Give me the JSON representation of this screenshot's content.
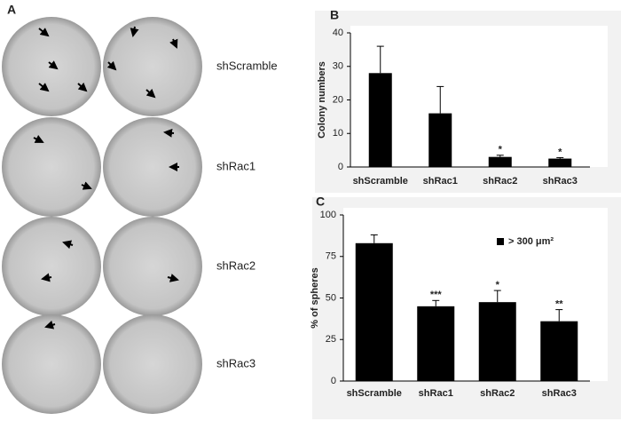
{
  "panel_a": {
    "label": "A",
    "rows": [
      "shScramble",
      "shRac1",
      "shRac2",
      "shRac3"
    ]
  },
  "chart_data": [
    {
      "type": "bar",
      "panel": "B",
      "ylabel": "Colony numbers",
      "categories": [
        "shScramble",
        "shRac1",
        "shRac2",
        "shRac3"
      ],
      "series": [
        {
          "color": "#000000",
          "values": [
            28,
            16,
            3,
            2.5
          ],
          "errors": [
            8,
            8,
            0.5,
            0.3
          ]
        }
      ],
      "significance": [
        null,
        null,
        "*",
        "*"
      ],
      "ylim": [
        0,
        40
      ],
      "yticks": [
        0,
        10,
        20,
        30,
        40
      ]
    },
    {
      "type": "bar",
      "panel": "C",
      "ylabel": "% of spheres",
      "categories": [
        "shScramble",
        "shRac1",
        "shRac2",
        "shRac3"
      ],
      "series": [
        {
          "name": "> 300 μm²",
          "color": "#000000",
          "values": [
            83,
            45,
            47.5,
            36
          ],
          "errors": [
            5,
            3.5,
            7,
            7
          ]
        }
      ],
      "significance": [
        null,
        "***",
        "*",
        "**"
      ],
      "ylim": [
        0,
        100
      ],
      "yticks": [
        0,
        25,
        50,
        75,
        100
      ]
    }
  ]
}
